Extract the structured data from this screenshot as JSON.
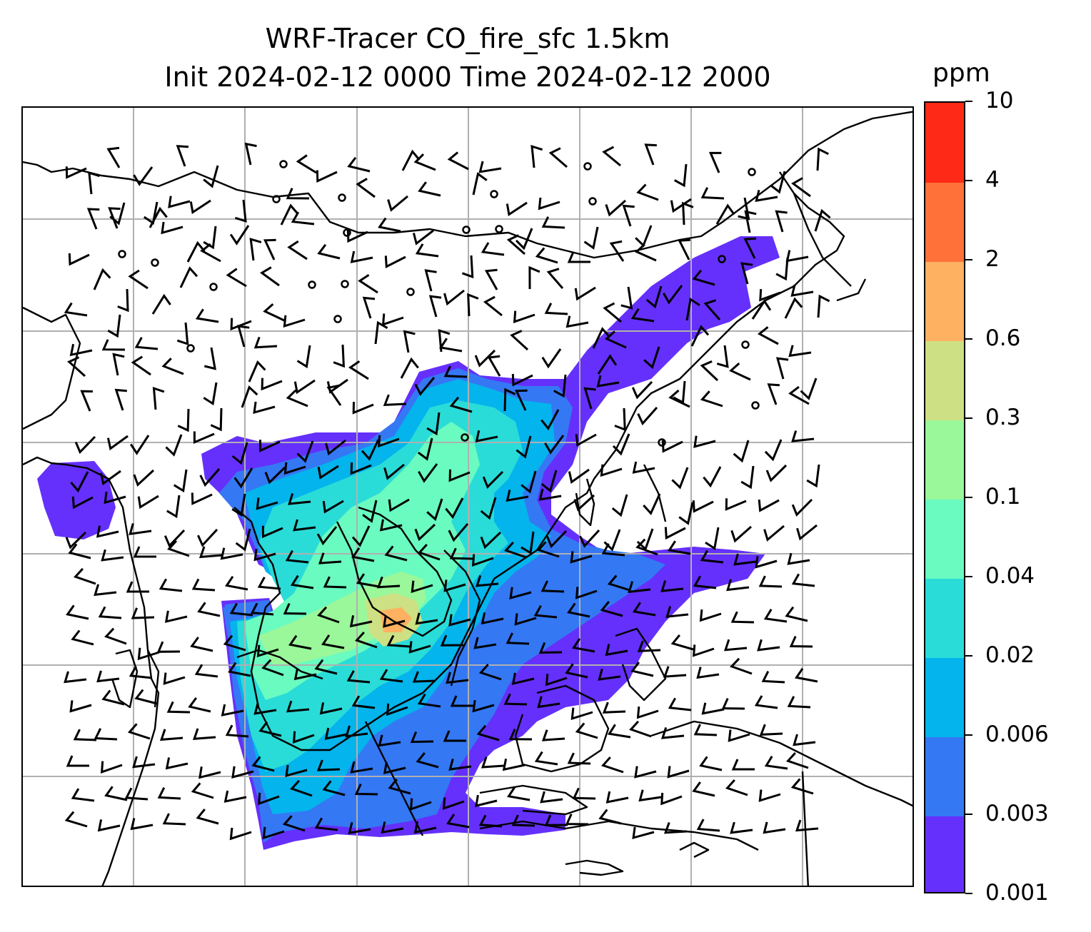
{
  "title_line1": "WRF-Tracer CO_fire_sfc 1.5km",
  "title_line2": "Init 2024-02-12 0000 Time 2024-02-12 2000",
  "colorbar": {
    "units": "ppm",
    "levels": [
      "0.001",
      "0.003",
      "0.006",
      "0.02",
      "0.04",
      "0.1",
      "0.3",
      "0.6",
      "2",
      "4",
      "10"
    ],
    "colors": [
      "#6530fb",
      "#3478f4",
      "#04b4ec",
      "#2adcd8",
      "#6afbc0",
      "#9af79a",
      "#cde083",
      "#feb161",
      "#ff7139",
      "#fe2a17"
    ]
  },
  "map": {
    "gridline_color": "#b0b0b0",
    "coastline_color": "#000000",
    "wind_barb_color": "#000000",
    "plume_levels_shown": [
      "0.001",
      "0.003",
      "0.006",
      "0.02",
      "0.04",
      "0.1",
      "0.3",
      "0.6"
    ]
  }
}
